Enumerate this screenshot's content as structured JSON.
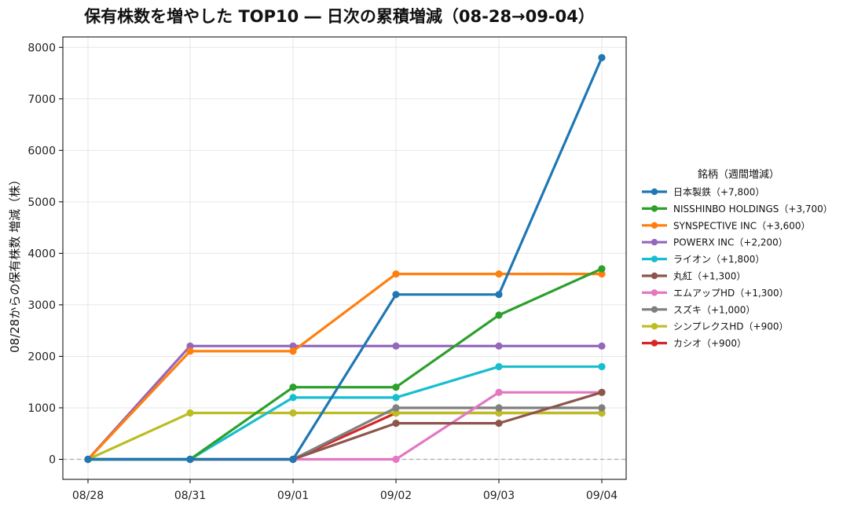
{
  "chart_data": {
    "type": "line",
    "title": "保有株数を増やした TOP10 ― 日次の累積増減（08-28→09-04）",
    "xlabel": "",
    "ylabel": "08/28からの保有株数 増減（株）",
    "categories": [
      "08/28",
      "08/31",
      "09/01",
      "09/02",
      "09/03",
      "09/04"
    ],
    "ylim": [
      -400,
      8200
    ],
    "yticks": [
      0,
      1000,
      2000,
      3000,
      4000,
      5000,
      6000,
      7000,
      8000
    ],
    "grid": true,
    "zero_line": true,
    "legend_title": "銘柄（週間増減）",
    "legend_position": "right",
    "series": [
      {
        "name": "日本製鉄（+7,800）",
        "color": "#1f77b4",
        "values": [
          0,
          0,
          0,
          3200,
          3200,
          7800
        ]
      },
      {
        "name": "NISSHINBO HOLDINGS（+3,700）",
        "color": "#2ca02c",
        "values": [
          0,
          0,
          1400,
          1400,
          2800,
          3700
        ]
      },
      {
        "name": "SYNSPECTIVE INC（+3,600）",
        "color": "#ff7f0e",
        "values": [
          0,
          2100,
          2100,
          3600,
          3600,
          3600
        ]
      },
      {
        "name": "POWERX INC（+2,200）",
        "color": "#9467bd",
        "values": [
          0,
          2200,
          2200,
          2200,
          2200,
          2200
        ]
      },
      {
        "name": "ライオン（+1,800）",
        "color": "#17becf",
        "values": [
          0,
          0,
          1200,
          1200,
          1800,
          1800
        ]
      },
      {
        "name": "丸紅（+1,300）",
        "color": "#8c564b",
        "values": [
          0,
          0,
          0,
          700,
          700,
          1300
        ]
      },
      {
        "name": "エムアップHD（+1,300）",
        "color": "#e377c2",
        "values": [
          0,
          0,
          0,
          0,
          1300,
          1300
        ]
      },
      {
        "name": "スズキ（+1,000）",
        "color": "#7f7f7f",
        "values": [
          0,
          0,
          0,
          1000,
          1000,
          1000
        ]
      },
      {
        "name": "シンプレクスHD（+900）",
        "color": "#bcbd22",
        "values": [
          0,
          900,
          900,
          900,
          900,
          900
        ]
      },
      {
        "name": "カシオ（+900）",
        "color": "#d62728",
        "values": [
          0,
          0,
          0,
          900,
          900,
          900
        ]
      }
    ]
  }
}
